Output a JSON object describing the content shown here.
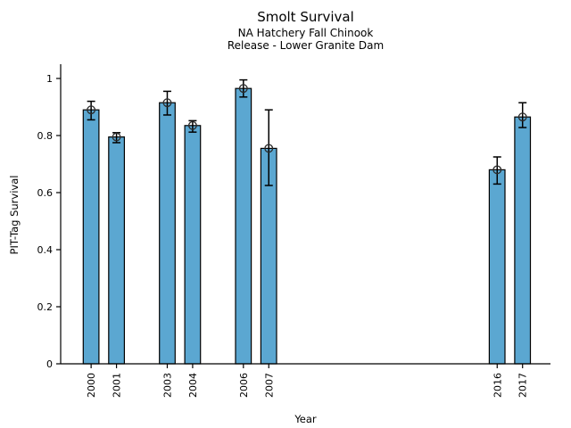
{
  "figure": {
    "background": "#ffffff"
  },
  "chart_data": {
    "type": "bar",
    "title": "Smolt Survival",
    "subtitle": [
      "NA Hatchery Fall Chinook",
      "Release - Lower Granite Dam"
    ],
    "xlabel": "Year",
    "ylabel": "PIT-Tag Survival",
    "categories": [
      "2000",
      "2001",
      "2003",
      "2004",
      "2006",
      "2007",
      "2016",
      "2017"
    ],
    "x": [
      2000,
      2001,
      2003,
      2004,
      2006,
      2007,
      2016,
      2017
    ],
    "values": [
      0.89,
      0.795,
      0.915,
      0.835,
      0.965,
      0.755,
      0.68,
      0.865
    ],
    "error_low": [
      0.855,
      0.775,
      0.872,
      0.812,
      0.935,
      0.625,
      0.63,
      0.828
    ],
    "error_high": [
      0.92,
      0.81,
      0.955,
      0.852,
      0.995,
      0.89,
      0.725,
      0.915
    ],
    "xlim": [
      1998.8,
      2018.1
    ],
    "ylim": [
      0,
      1.05
    ],
    "ytick_values": [
      0,
      0.2,
      0.4,
      0.6,
      0.8,
      1
    ],
    "ytick_labels": [
      "0",
      "0.2",
      "0.4",
      "0.6",
      "0.8",
      "1"
    ],
    "grid": false,
    "legend": "none",
    "bar_width_years": 0.62,
    "bar_color": "#5BA7D1",
    "bar_edge_color": "#000000",
    "error_bar_color": "#000000",
    "axis_color": "#000000",
    "marker": "open-circle",
    "marker_color": "#2b2b2b"
  }
}
